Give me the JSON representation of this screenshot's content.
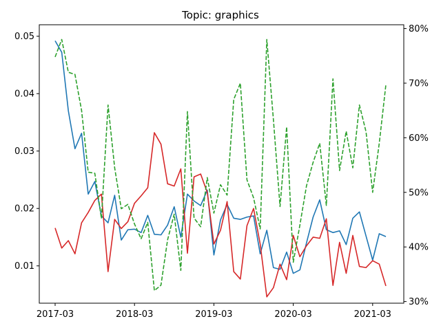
{
  "chart_data": {
    "type": "line",
    "title": "Topic: graphics",
    "xlabel": "",
    "ylabel": "",
    "grid": false,
    "x": [
      "2017-03",
      "2017-04",
      "2017-05",
      "2017-06",
      "2017-07",
      "2017-08",
      "2017-09",
      "2017-10",
      "2017-11",
      "2017-12",
      "2018-01",
      "2018-02",
      "2018-03",
      "2018-04",
      "2018-05",
      "2018-06",
      "2018-07",
      "2018-08",
      "2018-09",
      "2018-10",
      "2018-11",
      "2018-12",
      "2019-01",
      "2019-02",
      "2019-03",
      "2019-04",
      "2019-05",
      "2019-06",
      "2019-07",
      "2019-08",
      "2019-09",
      "2019-10",
      "2019-11",
      "2019-12",
      "2020-01",
      "2020-02",
      "2020-03",
      "2020-04",
      "2020-05",
      "2020-06",
      "2020-07",
      "2020-08",
      "2020-09",
      "2020-10",
      "2020-11",
      "2020-12",
      "2021-01",
      "2021-02",
      "2021-03",
      "2021-04",
      "2021-05"
    ],
    "x_ticks": [
      "2017-03",
      "2018-03",
      "2019-03",
      "2020-03",
      "2021-03"
    ],
    "y_left": {
      "lim": [
        0.0035,
        0.052
      ],
      "ticks": [
        0.01,
        0.02,
        0.03,
        0.04,
        0.05
      ],
      "tick_labels": [
        "0.01",
        "0.02",
        "0.03",
        "0.04",
        "0.05"
      ]
    },
    "y_right": {
      "lim": [
        0.297,
        0.807
      ],
      "ticks": [
        0.3,
        0.4,
        0.5,
        0.6,
        0.7,
        0.8
      ],
      "tick_labels": [
        "30%",
        "40%",
        "50%",
        "60%",
        "70%",
        "80%"
      ]
    },
    "series": [
      {
        "color": "#1f77b4",
        "axis": "left",
        "style": "solid",
        "values": [
          0.0492,
          0.0472,
          0.037,
          0.0304,
          0.0331,
          0.0225,
          0.0247,
          0.0187,
          0.0175,
          0.0223,
          0.0145,
          0.0163,
          0.0164,
          0.0158,
          0.0188,
          0.0155,
          0.0154,
          0.0171,
          0.0203,
          0.015,
          0.0225,
          0.0213,
          0.0205,
          0.0232,
          0.0119,
          0.018,
          0.0207,
          0.0183,
          0.0181,
          0.0185,
          0.0187,
          0.0121,
          0.0162,
          0.0097,
          0.0094,
          0.0124,
          0.0087,
          0.0093,
          0.014,
          0.0185,
          0.0215,
          0.0163,
          0.0158,
          0.0161,
          0.0137,
          0.0183,
          0.0194,
          0.0152,
          0.011,
          0.0156,
          0.0151
        ]
      },
      {
        "color": "#d62728",
        "axis": "left",
        "style": "solid",
        "values": [
          0.0166,
          0.0131,
          0.0144,
          0.0121,
          0.0175,
          0.0193,
          0.0214,
          0.0225,
          0.009,
          0.0181,
          0.0165,
          0.0177,
          0.0209,
          0.0222,
          0.0236,
          0.0332,
          0.0312,
          0.0243,
          0.0239,
          0.0269,
          0.0122,
          0.0255,
          0.026,
          0.0228,
          0.0138,
          0.0162,
          0.0212,
          0.009,
          0.0077,
          0.017,
          0.02,
          0.0138,
          0.0046,
          0.0062,
          0.0103,
          0.0076,
          0.0153,
          0.0116,
          0.0135,
          0.015,
          0.0148,
          0.0182,
          0.0066,
          0.0141,
          0.0087,
          0.0153,
          0.0099,
          0.0097,
          0.0109,
          0.0103,
          0.0065
        ]
      },
      {
        "color": "#2ca02c",
        "axis": "right",
        "style": "dashed",
        "values": [
          0.748,
          0.78,
          0.72,
          0.716,
          0.65,
          0.537,
          0.535,
          0.452,
          0.66,
          0.545,
          0.47,
          0.478,
          0.442,
          0.415,
          0.445,
          0.32,
          0.33,
          0.413,
          0.46,
          0.357,
          0.648,
          0.453,
          0.437,
          0.527,
          0.462,
          0.514,
          0.495,
          0.67,
          0.7,
          0.523,
          0.49,
          0.433,
          0.78,
          0.633,
          0.474,
          0.62,
          0.372,
          0.44,
          0.512,
          0.555,
          0.59,
          0.476,
          0.708,
          0.54,
          0.612,
          0.545,
          0.66,
          0.611,
          0.5,
          0.59,
          0.697
        ]
      }
    ]
  }
}
